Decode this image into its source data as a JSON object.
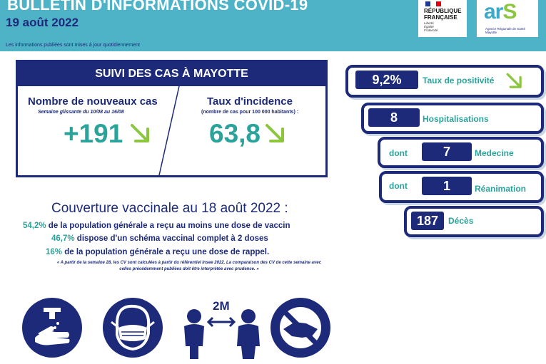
{
  "header": {
    "title": "BULLETIN D'INFORMATIONS COVID-19",
    "date": "19 août 2022",
    "note": "Les informations publiées sont mises à jour quotidiennement"
  },
  "logos": {
    "rf_title_line1": "RÉPUBLIQUE",
    "rf_title_line2": "FRANÇAISE",
    "rf_motto_1": "Liberté",
    "rf_motto_2": "Égalité",
    "rf_motto_3": "Fraternité",
    "ars_letters": "ar",
    "ars_s": "S",
    "ars_subtitle_1": "Agence Régionale de Santé",
    "ars_subtitle_2": "Mayotte"
  },
  "suivi": {
    "title": "SUIVI DES CAS À MAYOTTE",
    "cases": {
      "title": "Nombre de nouveaux cas",
      "subtitle": "Semaine glissante du 10/08 au 16/08",
      "value": "+191"
    },
    "incidence": {
      "title": "Taux d'incidence",
      "subtitle": "(nombre de cas pour 100 000 habitants) :",
      "value": "63,8"
    }
  },
  "coverage": {
    "title": "Couverture vaccinale au 18 août 2022 :",
    "line1": {
      "pct": "54,2%",
      "text": " de la population générale a reçu au moins une dose de vaccin"
    },
    "line2": {
      "pct": "46,7%",
      "text": " dispose d'un schéma vaccinal complet à 2 doses"
    },
    "line3": {
      "pct": "16%",
      "text": " de la population générale a reçu une dose de rappel."
    },
    "footnote_1": "« A partir de la semaine 28, les CV sont calculées à partir du référentiel Insee 2022. La comparaison des CV de cette semaine avec",
    "footnote_2": "celles précédemment publiées doit être interprétée avec prudence. »"
  },
  "stats": {
    "positivity": {
      "value": "9,2%",
      "label": "Taux de positivité"
    },
    "hospital": {
      "value": "8",
      "label": "Hospitalisations"
    },
    "medecine": {
      "prefix": "dont",
      "value": "7",
      "label": "Medecine"
    },
    "reanimation": {
      "prefix": "dont",
      "value": "1",
      "label": "Réanimation"
    },
    "deaths": {
      "value": "187",
      "label": "Décès"
    }
  },
  "icons": {
    "distance_label": "2M",
    "names": [
      "handwash-icon",
      "mask-icon",
      "distance-icon",
      "no-handshake-icon"
    ]
  },
  "colors": {
    "navy": "#1d2a7a",
    "teal": "#2aa39a",
    "header": "#4fb3c8",
    "arrow_green": "#8cc63f"
  }
}
